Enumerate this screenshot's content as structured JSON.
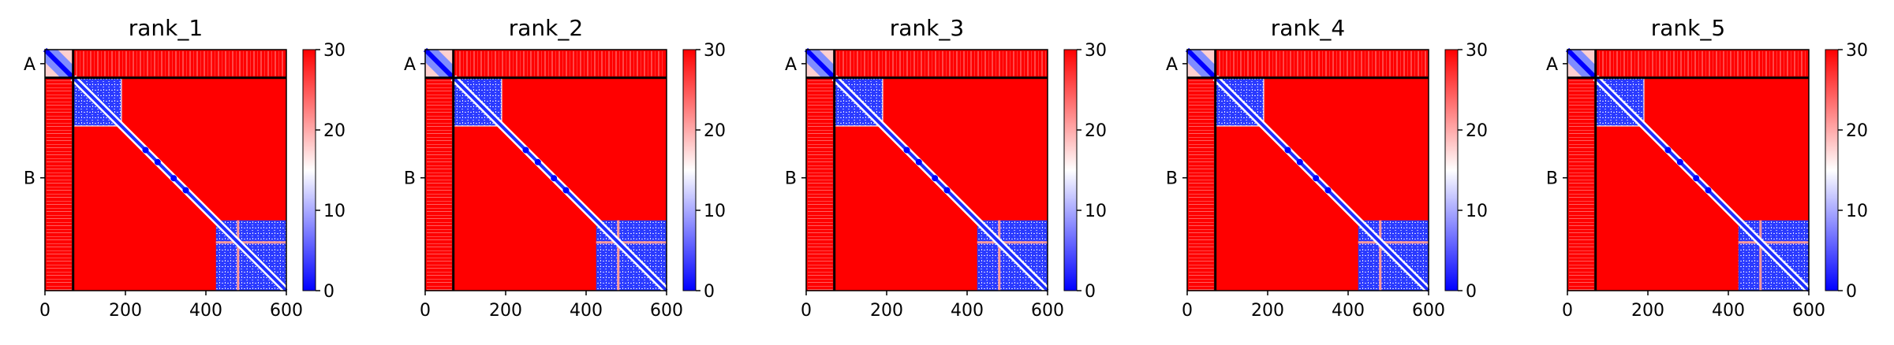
{
  "chart_data": [
    {
      "type": "heatmap",
      "title": "rank_1",
      "xlim": [
        0,
        600
      ],
      "x_ticks": [
        "0",
        "200",
        "400",
        "600"
      ],
      "y_tick_labels": [
        "A",
        "B"
      ],
      "chain_boundary": 70,
      "colorbar": {
        "min": 0,
        "max": 30,
        "ticks": [
          "0",
          "10",
          "20",
          "30"
        ],
        "colors": [
          "#0000ff",
          "#ffffff",
          "#ff0000"
        ]
      }
    },
    {
      "type": "heatmap",
      "title": "rank_2",
      "xlim": [
        0,
        600
      ],
      "x_ticks": [
        "0",
        "200",
        "400",
        "600"
      ],
      "y_tick_labels": [
        "A",
        "B"
      ],
      "chain_boundary": 70,
      "colorbar": {
        "min": 0,
        "max": 30,
        "ticks": [
          "0",
          "10",
          "20",
          "30"
        ],
        "colors": [
          "#0000ff",
          "#ffffff",
          "#ff0000"
        ]
      }
    },
    {
      "type": "heatmap",
      "title": "rank_3",
      "xlim": [
        0,
        600
      ],
      "x_ticks": [
        "0",
        "200",
        "400",
        "600"
      ],
      "y_tick_labels": [
        "A",
        "B"
      ],
      "chain_boundary": 70,
      "colorbar": {
        "min": 0,
        "max": 30,
        "ticks": [
          "0",
          "10",
          "20",
          "30"
        ],
        "colors": [
          "#0000ff",
          "#ffffff",
          "#ff0000"
        ]
      }
    },
    {
      "type": "heatmap",
      "title": "rank_4",
      "xlim": [
        0,
        600
      ],
      "x_ticks": [
        "0",
        "200",
        "400",
        "600"
      ],
      "y_tick_labels": [
        "A",
        "B"
      ],
      "chain_boundary": 70,
      "colorbar": {
        "min": 0,
        "max": 30,
        "ticks": [
          "0",
          "10",
          "20",
          "30"
        ],
        "colors": [
          "#0000ff",
          "#ffffff",
          "#ff0000"
        ]
      }
    },
    {
      "type": "heatmap",
      "title": "rank_5",
      "xlim": [
        0,
        600
      ],
      "x_ticks": [
        "0",
        "200",
        "400",
        "600"
      ],
      "y_tick_labels": [
        "A",
        "B"
      ],
      "chain_boundary": 70,
      "colorbar": {
        "min": 0,
        "max": 30,
        "ticks": [
          "0",
          "10",
          "20",
          "30"
        ],
        "colors": [
          "#0000ff",
          "#ffffff",
          "#ff0000"
        ]
      }
    }
  ]
}
